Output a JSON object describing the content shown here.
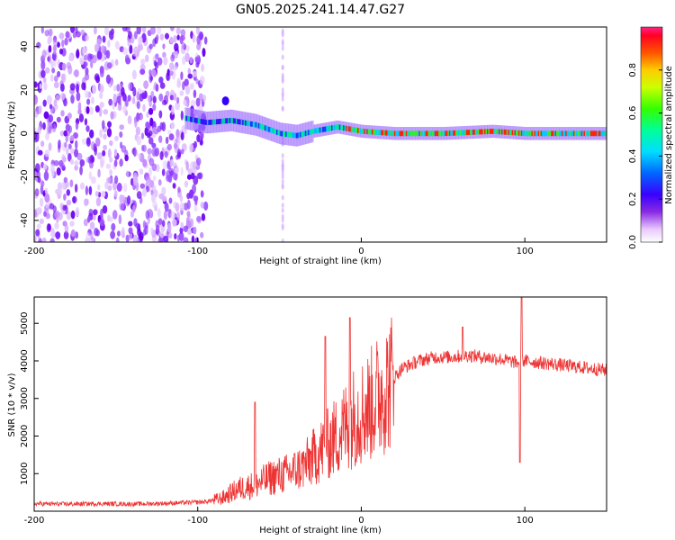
{
  "title": "GN05.2025.241.14.47.G27",
  "chart_data": [
    {
      "type": "heatmap",
      "title": "GN05.2025.241.14.47.G27",
      "xlabel": "Height of straight line (km)",
      "ylabel": "Frequency (Hz)",
      "xlim": [
        -200,
        150
      ],
      "ylim": [
        -50,
        49
      ],
      "xticks": [
        "-200",
        "-100",
        "0",
        "100"
      ],
      "yticks": [
        "-40",
        "-20",
        "0",
        "20",
        "40"
      ],
      "colorbar": {
        "label": "Normalized spectral amplitude",
        "range": [
          0,
          1
        ],
        "ticks": [
          "0.0",
          "0.2",
          "0.4",
          "0.6",
          "0.8"
        ]
      },
      "description_points": {
        "noise_region_x": [
          -200,
          -95
        ],
        "signal_start_x": -108,
        "signal_track": [
          {
            "x": -108,
            "f": 7
          },
          {
            "x": -95,
            "f": 5
          },
          {
            "x": -80,
            "f": 6
          },
          {
            "x": -65,
            "f": 4
          },
          {
            "x": -50,
            "f": 0
          },
          {
            "x": -40,
            "f": -1
          },
          {
            "x": -30,
            "f": 1
          },
          {
            "x": -15,
            "f": 3
          },
          {
            "x": 0,
            "f": 1
          },
          {
            "x": 20,
            "f": 0
          },
          {
            "x": 50,
            "f": 0
          },
          {
            "x": 80,
            "f": 1
          },
          {
            "x": 100,
            "f": 0
          },
          {
            "x": 150,
            "f": 0
          }
        ]
      }
    },
    {
      "type": "line",
      "xlabel": "Height of straight line (km)",
      "ylabel": "SNR (10 * v/v)",
      "xlim": [
        -200,
        150
      ],
      "ylim": [
        0,
        5700
      ],
      "xticks": [
        "-200",
        "-100",
        "0",
        "100"
      ],
      "yticks": [
        "1000",
        "2000",
        "3000",
        "4000",
        "5000"
      ],
      "color": "#ee3333",
      "series": [
        {
          "name": "SNR",
          "x": [
            -200,
            -180,
            -160,
            -140,
            -120,
            -105,
            -95,
            -85,
            -75,
            -65,
            -55,
            -45,
            -35,
            -25,
            -15,
            -5,
            5,
            15,
            25,
            35,
            45,
            55,
            65,
            75,
            85,
            95,
            100,
            110,
            120,
            130,
            140,
            150
          ],
          "y": [
            200,
            190,
            200,
            190,
            210,
            230,
            250,
            350,
            600,
            700,
            900,
            1000,
            1200,
            1600,
            2000,
            2500,
            2800,
            3300,
            3800,
            4000,
            4100,
            4100,
            4150,
            4100,
            4050,
            3950,
            4000,
            3950,
            3900,
            3850,
            3800,
            3750
          ]
        }
      ],
      "spikes": [
        {
          "x": -65,
          "y": 2900
        },
        {
          "x": -22,
          "y": 4650
        },
        {
          "x": -7,
          "y": 5150
        },
        {
          "x": 62,
          "y": 4900
        },
        {
          "x": 98,
          "y": 5700
        },
        {
          "x": 97,
          "y": 1300
        }
      ]
    }
  ]
}
